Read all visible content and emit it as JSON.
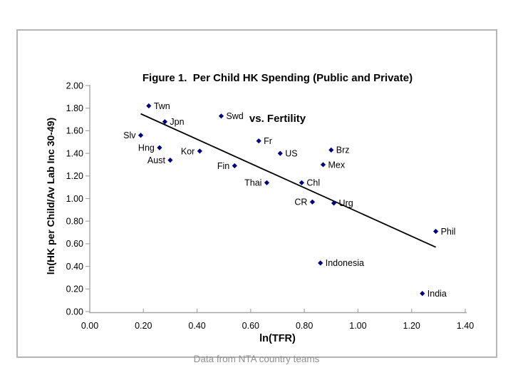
{
  "figure": {
    "title_line1": "Figure 1.  Per Child HK Spending (Public and Private)",
    "title_line2": "vs. Fertility",
    "caption": "Data from NTA country teams"
  },
  "colors": {
    "marker": "#000080",
    "trendline": "#000000",
    "axis": "#a6a6a6",
    "tick_label": "#000000",
    "point_label": "#000000",
    "frame_border": "#b5b5b5",
    "caption_text": "#8f8f8f"
  },
  "chart_data": {
    "type": "scatter",
    "title": "Figure 1. Per Child HK Spending (Public and Private) vs. Fertility",
    "xlabel": "ln(TFR)",
    "ylabel": "ln(HK per Child/Av Lab Inc 30-49)",
    "xlim": [
      0.0,
      1.4
    ],
    "ylim": [
      0.0,
      2.0
    ],
    "grid": false,
    "legend": "none",
    "marker_shape": "diamond",
    "x_ticks": {
      "values": [
        0.0,
        0.2,
        0.4,
        0.6,
        0.8,
        1.0,
        1.2,
        1.4
      ],
      "labels": [
        "0.00",
        "0.20",
        "0.40",
        "0.60",
        "0.80",
        "1.00",
        "1.20",
        "1.40"
      ]
    },
    "y_ticks": {
      "values": [
        0.0,
        0.2,
        0.4,
        0.6,
        0.8,
        1.0,
        1.2,
        1.4,
        1.6,
        1.8,
        2.0
      ],
      "labels": [
        "0.00",
        "0.20",
        "0.40",
        "0.60",
        "0.80",
        "1.00",
        "1.20",
        "1.40",
        "1.60",
        "1.80",
        "2.00"
      ]
    },
    "points": [
      {
        "name": "Twn",
        "x": 0.22,
        "y": 1.82,
        "label_side": "right"
      },
      {
        "name": "Jpn",
        "x": 0.28,
        "y": 1.68,
        "label_side": "right"
      },
      {
        "name": "Swd",
        "x": 0.49,
        "y": 1.73,
        "label_side": "right"
      },
      {
        "name": "Slv",
        "x": 0.19,
        "y": 1.56,
        "label_side": "left"
      },
      {
        "name": "Hng",
        "x": 0.26,
        "y": 1.45,
        "label_side": "left"
      },
      {
        "name": "Kor",
        "x": 0.41,
        "y": 1.42,
        "label_side": "left"
      },
      {
        "name": "Aust",
        "x": 0.3,
        "y": 1.34,
        "label_side": "left"
      },
      {
        "name": "Fr",
        "x": 0.63,
        "y": 1.51,
        "label_side": "right"
      },
      {
        "name": "US",
        "x": 0.71,
        "y": 1.4,
        "label_side": "right"
      },
      {
        "name": "Brz",
        "x": 0.9,
        "y": 1.43,
        "label_side": "right"
      },
      {
        "name": "Mex",
        "x": 0.87,
        "y": 1.3,
        "label_side": "right"
      },
      {
        "name": "Fin",
        "x": 0.54,
        "y": 1.29,
        "label_side": "left"
      },
      {
        "name": "Thai",
        "x": 0.66,
        "y": 1.14,
        "label_side": "left"
      },
      {
        "name": "Chl",
        "x": 0.79,
        "y": 1.14,
        "label_side": "right"
      },
      {
        "name": "CR",
        "x": 0.83,
        "y": 0.97,
        "label_side": "left"
      },
      {
        "name": "Urg",
        "x": 0.91,
        "y": 0.96,
        "label_side": "right"
      },
      {
        "name": "Phil",
        "x": 1.29,
        "y": 0.71,
        "label_side": "right"
      },
      {
        "name": "Indonesia",
        "x": 0.86,
        "y": 0.43,
        "label_side": "right"
      },
      {
        "name": "India",
        "x": 1.24,
        "y": 0.16,
        "label_side": "right"
      }
    ],
    "trendline": {
      "x1": 0.19,
      "y1": 1.75,
      "x2": 1.29,
      "y2": 0.57
    }
  }
}
